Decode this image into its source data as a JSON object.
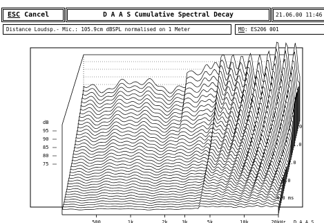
{
  "toolbar": {
    "escape_key": "ESC",
    "escape_label": " Cancel",
    "title": "D A A S  Cumulative Spectral Decay",
    "date": "21.06.00 11:46"
  },
  "info_bar": {
    "measurement": "Distance Loudsp.- Mic.: 105.9cm dBSPL normalised on 1 Meter",
    "mo_key": "MO",
    "mo_value": ": ES206 001"
  },
  "chart_data": {
    "type": "waterfall",
    "title": "",
    "ylabel": "dB",
    "y_ticks": [
      "95",
      "90",
      "85",
      "80",
      "75"
    ],
    "x_ticks": [
      "500",
      "1k",
      "2k",
      "3k",
      "5k",
      "10k",
      "20kHz"
    ],
    "x_unit_label": "D A A S",
    "time_ticks": [
      "0",
      "1.0",
      "2.0",
      "3.0",
      "4.0 ms"
    ],
    "xlim_hz": [
      250,
      20000
    ],
    "time_range_ms": [
      0,
      4.0
    ],
    "slice_count": 40,
    "grid": true,
    "line_color": "#000000"
  }
}
